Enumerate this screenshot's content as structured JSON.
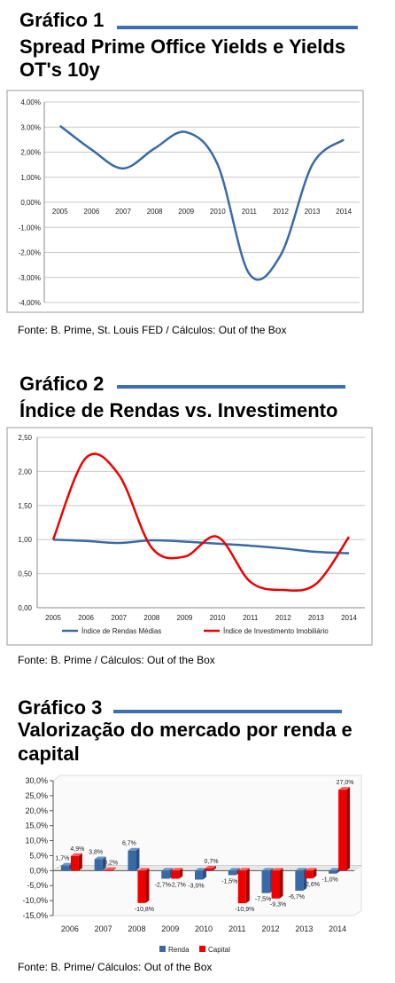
{
  "charts": [
    {
      "heading": "Gráfico 1",
      "title_lines": [
        "Spread Prime Office Yields e Yields",
        "OT's 10y"
      ],
      "source": "Fonte: B. Prime, St. Louis FED / Cálculos: Out of the Box"
    },
    {
      "heading": "Gráfico 2",
      "title_lines": [
        "Índice de Rendas vs. Investimento"
      ],
      "source": "Fonte: B. Prime / Cálculos: Out of the Box"
    },
    {
      "heading": "Gráfico 3",
      "title_lines": [
        "Valorização do mercado por renda e",
        "capital"
      ],
      "source": "Fonte: B. Prime/ Cálculos: Out of the Box"
    }
  ],
  "colors": {
    "accent_rule": "#3d6fb3",
    "series_blue": "#3a6aa5",
    "series_red": "#ee0000"
  },
  "chart_data": [
    {
      "type": "line",
      "title": "Spread Prime Office Yields e Yields OT's 10y",
      "x": [
        "2005",
        "2006",
        "2007",
        "2008",
        "2009",
        "2010",
        "2011",
        "2012",
        "2013",
        "2014"
      ],
      "series": [
        {
          "values": [
            3.05,
            2.1,
            1.35,
            2.15,
            2.8,
            1.5,
            -2.85,
            -2.1,
            1.5,
            2.5
          ]
        }
      ],
      "ylim": [
        -4.0,
        4.0
      ],
      "yticks": [
        "4,00%",
        "3,00%",
        "2,00%",
        "1,00%",
        "0,00%",
        "-1,00%",
        "-2,00%",
        "-3,00%",
        "-4,00%"
      ],
      "grid": true,
      "legend": "none"
    },
    {
      "type": "line",
      "x": [
        "2005",
        "2006",
        "2007",
        "2008",
        "2009",
        "2010",
        "2011",
        "2012",
        "2013",
        "2014"
      ],
      "series": [
        {
          "name": "Índice de Rendas Médias",
          "values": [
            1.0,
            0.98,
            0.95,
            0.99,
            0.97,
            0.94,
            0.91,
            0.87,
            0.82,
            0.8
          ]
        },
        {
          "name": "Índice de Investimento Imobiliário",
          "values": [
            1.0,
            2.2,
            1.95,
            0.88,
            0.75,
            1.04,
            0.38,
            0.26,
            0.35,
            1.04
          ]
        }
      ],
      "ylim": [
        0.0,
        2.5
      ],
      "yticks": [
        "2,50",
        "2,00",
        "1,50",
        "1,00",
        "0,50",
        "0,00"
      ],
      "grid": true,
      "legend": "bottom"
    },
    {
      "type": "bar",
      "categories": [
        "2006",
        "2007",
        "2008",
        "2009",
        "2010",
        "2011",
        "2012",
        "2013",
        "2014"
      ],
      "series": [
        {
          "name": "Renda",
          "values": [
            1.7,
            3.8,
            6.7,
            -2.7,
            -3.0,
            -1.5,
            -7.5,
            -6.7,
            -1.0
          ],
          "labels": [
            "1,7%",
            "3,8%",
            "6,7%",
            "-2,7%",
            "-3,0%",
            "-1,5%",
            "-7,5%",
            "-6,7%",
            "-1,0%"
          ]
        },
        {
          "name": "Capital",
          "values": [
            4.9,
            0.2,
            -10.8,
            -2.7,
            0.7,
            -10.9,
            -9.3,
            -2.6,
            27.0
          ],
          "labels": [
            "4,9%",
            "0,2%",
            "-10,8%",
            "-2,7%",
            "0,7%",
            "-10,9%",
            "-9,3%",
            "-2,6%",
            "27,0%"
          ]
        }
      ],
      "ylim": [
        -15.0,
        30.0
      ],
      "yticks": [
        "30,0%",
        "25,0%",
        "20,0%",
        "15,0%",
        "10,0%",
        "5,0%",
        "0,0%",
        "-5,0%",
        "-10,0%",
        "-15,0%"
      ],
      "grid": false,
      "legend": "bottom"
    }
  ]
}
